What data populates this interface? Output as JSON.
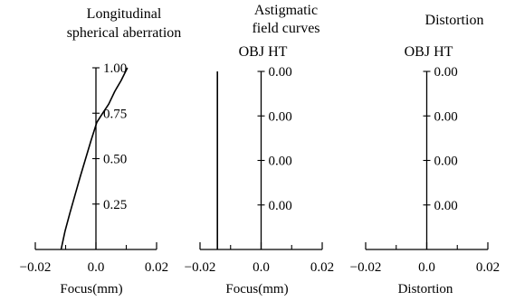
{
  "chart_data": [
    {
      "type": "line",
      "title": "Longitudinal spherical aberration",
      "title_lines": [
        "Longitudinal",
        "spherical aberration"
      ],
      "xlabel": "Focus(mm)",
      "y_axis_label": "",
      "xlim": [
        -0.02,
        0.02
      ],
      "ylim": [
        0,
        1.0
      ],
      "x_ticks": [
        -0.02,
        0.0,
        0.02
      ],
      "x_tick_labels": [
        "−0.02",
        "0.0",
        "0.02"
      ],
      "x_minor_ticks": [
        -0.01,
        0.01
      ],
      "y_ticks": [
        0.25,
        0.5,
        0.75,
        1.0
      ],
      "y_tick_labels": [
        "0.25",
        "0.50",
        "0.75",
        "1.00"
      ],
      "grid": false,
      "series": [
        {
          "x": [
            -0.0115,
            -0.0102,
            -0.0086,
            -0.0069,
            -0.0052,
            -0.0034,
            -0.0016,
            0.0003,
            0.0022,
            0.0042,
            0.0062,
            0.0083,
            0.0104
          ],
          "y": [
            0.0,
            0.1,
            0.2,
            0.3,
            0.4,
            0.5,
            0.6,
            0.7,
            0.75,
            0.8,
            0.87,
            0.93,
            1.0
          ]
        }
      ]
    },
    {
      "type": "line",
      "title": "Astigmatic field curves",
      "title_lines": [
        "Astigmatic",
        "field curves"
      ],
      "xlabel": "Focus(mm)",
      "y_axis_label": "OBJ HT",
      "xlim": [
        -0.02,
        0.02
      ],
      "ylim": [
        0,
        1.0
      ],
      "x_ticks": [
        -0.02,
        0.0,
        0.02
      ],
      "x_tick_labels": [
        "−0.02",
        "0.0",
        "0.02"
      ],
      "x_minor_ticks": [
        -0.01,
        0.01
      ],
      "y_ticks": [
        0.25,
        0.5,
        0.75,
        1.0
      ],
      "y_tick_labels": [
        "0.00",
        "0.00",
        "0.00",
        "0.00"
      ],
      "grid": false,
      "series": [
        {
          "x": [
            -0.0143,
            -0.0143
          ],
          "y": [
            0.0,
            1.0
          ]
        }
      ]
    },
    {
      "type": "line",
      "title": "Distortion",
      "title_lines": [
        "Distortion"
      ],
      "xlabel": "Distortion",
      "y_axis_label": "OBJ HT",
      "xlim": [
        -0.02,
        0.02
      ],
      "ylim": [
        0,
        1.0
      ],
      "x_ticks": [
        -0.02,
        0.0,
        0.02
      ],
      "x_tick_labels": [
        "−0.02",
        "0.0",
        "0.02"
      ],
      "x_minor_ticks": [
        -0.01,
        0.01
      ],
      "y_ticks": [
        0.25,
        0.5,
        0.75,
        1.0
      ],
      "y_tick_labels": [
        "0.00",
        "0.00",
        "0.00",
        "0.00"
      ],
      "grid": false,
      "series": []
    }
  ]
}
